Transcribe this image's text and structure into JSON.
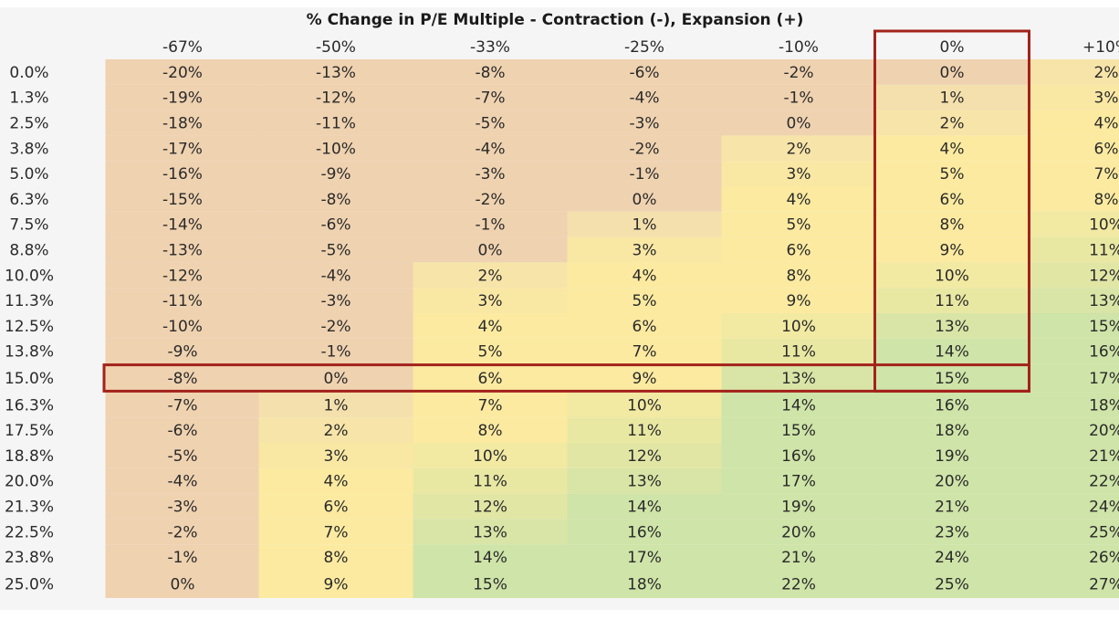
{
  "chart_data": {
    "type": "heatmap",
    "title": "% Change in P/E Multiple - Contraction (-), Expansion (+)",
    "columns": [
      "-67%",
      "-50%",
      "-33%",
      "-25%",
      "-10%",
      "0%",
      "+10%"
    ],
    "rows": [
      "0.0%",
      "1.3%",
      "2.5%",
      "3.8%",
      "5.0%",
      "6.3%",
      "7.5%",
      "8.8%",
      "10.0%",
      "11.3%",
      "12.5%",
      "13.8%",
      "15.0%",
      "16.3%",
      "17.5%",
      "18.8%",
      "20.0%",
      "21.3%",
      "22.5%",
      "23.8%",
      "25.0%"
    ],
    "values": [
      [
        -20,
        -13,
        -8,
        -6,
        -2,
        0,
        2
      ],
      [
        -19,
        -12,
        -7,
        -4,
        -1,
        1,
        3
      ],
      [
        -18,
        -11,
        -5,
        -3,
        0,
        2,
        4
      ],
      [
        -17,
        -10,
        -4,
        -2,
        2,
        4,
        6
      ],
      [
        -16,
        -9,
        -3,
        -1,
        3,
        5,
        7
      ],
      [
        -15,
        -8,
        -2,
        0,
        4,
        6,
        8
      ],
      [
        -14,
        -6,
        -1,
        1,
        5,
        8,
        10
      ],
      [
        -13,
        -5,
        0,
        3,
        6,
        9,
        11
      ],
      [
        -12,
        -4,
        2,
        4,
        8,
        10,
        12
      ],
      [
        -11,
        -3,
        3,
        5,
        9,
        11,
        13
      ],
      [
        -10,
        -2,
        4,
        6,
        10,
        13,
        15
      ],
      [
        -9,
        -1,
        5,
        7,
        11,
        14,
        16
      ],
      [
        -8,
        0,
        6,
        9,
        13,
        15,
        17
      ],
      [
        -7,
        1,
        7,
        10,
        14,
        16,
        18
      ],
      [
        -6,
        2,
        8,
        11,
        15,
        18,
        20
      ],
      [
        -5,
        3,
        10,
        12,
        16,
        19,
        21
      ],
      [
        -4,
        4,
        11,
        13,
        17,
        20,
        22
      ],
      [
        -3,
        6,
        12,
        14,
        19,
        21,
        24
      ],
      [
        -2,
        7,
        13,
        16,
        20,
        23,
        25
      ],
      [
        -1,
        8,
        14,
        17,
        21,
        24,
        26
      ],
      [
        0,
        9,
        15,
        18,
        22,
        25,
        27
      ]
    ],
    "value_suffix": "%",
    "highlight_column": "0%",
    "highlight_row": "15.0%",
    "colors": {
      "negative": "#efd2b0",
      "low": "#f2ddb0",
      "mid": "#fbeaa0",
      "high": "#cfe4a8",
      "highlight_border": "#a3221c",
      "background": "#f5f5f5"
    }
  }
}
